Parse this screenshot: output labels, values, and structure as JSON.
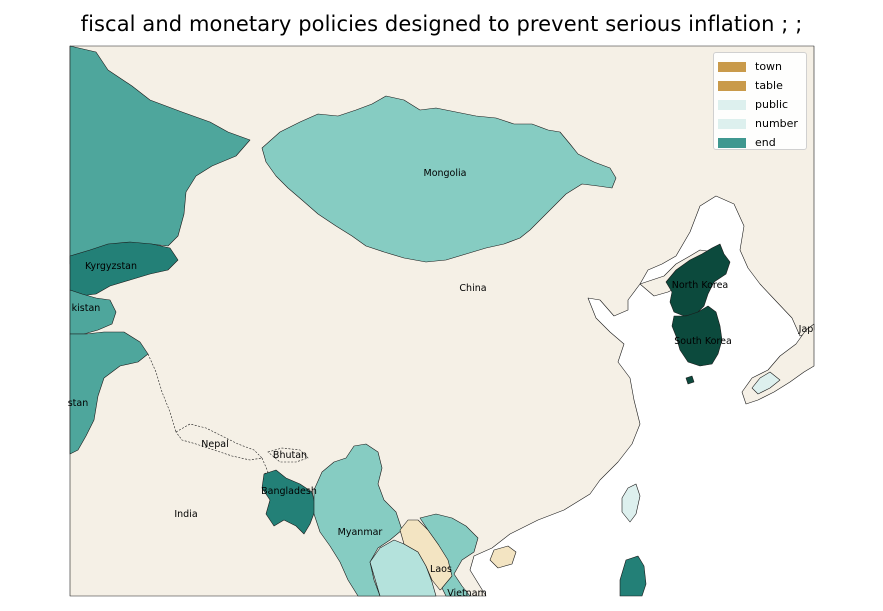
{
  "title": "fiscal and monetary policies designed to prevent serious inflation ; ;",
  "colors": {
    "land": "#f5f0e6",
    "ocean": "#ffffff",
    "end_dark": "#4ea69c",
    "teal_mid": "#238077",
    "teal_light": "#86ccc2",
    "teal_pale": "#b4e2dc",
    "darkest": "#0c4a3d",
    "tan": "#f3e4c2",
    "pale": "#ddf0ee"
  },
  "legend": [
    {
      "label": "town",
      "color": "#c99a4a"
    },
    {
      "label": "table",
      "color": "#c99a4a"
    },
    {
      "label": "public",
      "color": "#ddf0ee"
    },
    {
      "label": "number",
      "color": "#ddf0ee"
    },
    {
      "label": "end",
      "color": "#3f9890"
    }
  ],
  "labels": {
    "mongolia": "Mongolia",
    "china": "China",
    "north_korea": "North Korea",
    "south_korea": "South Korea",
    "kyrgyzstan": "Kyrgyzstan",
    "tajikistan": "kistan",
    "afghanistan": "stan",
    "nepal": "Nepal",
    "bhutan": "Bhutan",
    "bangladesh": "Bangladesh",
    "india": "India",
    "myanmar": "Myanmar",
    "laos": "Laos",
    "vietnam": "Vietnam",
    "japan": "Jap"
  }
}
